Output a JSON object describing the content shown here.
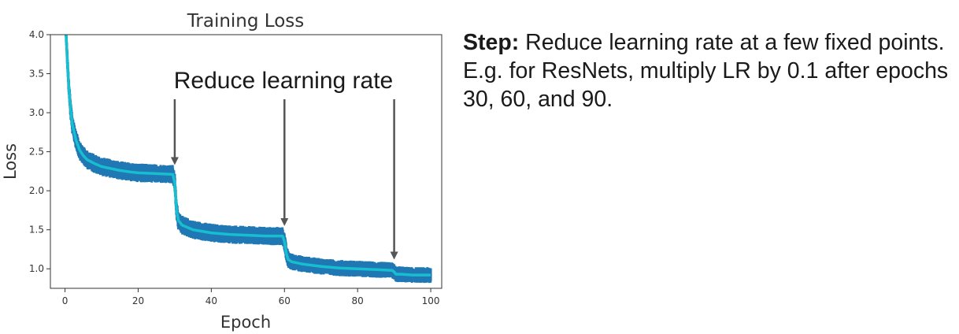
{
  "chart_data": {
    "type": "line",
    "title": "Training Loss",
    "xlabel": "Epoch",
    "ylabel": "Loss",
    "xlim": [
      -4,
      103
    ],
    "ylim": [
      0.75,
      4.0
    ],
    "xticks": [
      0,
      20,
      40,
      60,
      80,
      100
    ],
    "yticks": [
      1.0,
      1.5,
      2.0,
      2.5,
      3.0,
      3.5,
      4.0
    ],
    "xtick_labels": [
      "0",
      "20",
      "40",
      "60",
      "80",
      "100"
    ],
    "ytick_labels": [
      "1.0",
      "1.5",
      "2.0",
      "2.5",
      "3.0",
      "3.5",
      "4.0"
    ],
    "grid": false,
    "series": [
      {
        "color": "#17becf",
        "band_color": "#1f77b4",
        "x": [
          0,
          0.5,
          1,
          1.5,
          2,
          3,
          4,
          5,
          6,
          8,
          10,
          12,
          15,
          18,
          20,
          25,
          29.5,
          30,
          30.5,
          31,
          32,
          35,
          40,
          45,
          50,
          55,
          59.5,
          60,
          60.5,
          61,
          62,
          65,
          70,
          75,
          80,
          85,
          89.5,
          90,
          90.5,
          92,
          95,
          100
        ],
        "values": [
          4.3,
          3.8,
          3.35,
          3.05,
          2.85,
          2.65,
          2.52,
          2.45,
          2.4,
          2.35,
          2.31,
          2.29,
          2.26,
          2.24,
          2.23,
          2.22,
          2.21,
          2.1,
          1.75,
          1.62,
          1.56,
          1.5,
          1.46,
          1.44,
          1.43,
          1.42,
          1.42,
          1.35,
          1.2,
          1.12,
          1.09,
          1.06,
          1.03,
          1.01,
          1.0,
          0.99,
          0.98,
          0.96,
          0.93,
          0.93,
          0.92,
          0.92
        ],
        "noise_amplitude": 0.12
      }
    ],
    "annotations": {
      "text": "Reduce learning rate",
      "arrow_epochs": [
        30,
        60,
        90
      ]
    }
  },
  "side_text": {
    "step_label": "Step:",
    "body": " Reduce learning rate at a few fixed points. E.g. for ResNets, multiply LR by 0.1 after epochs 30, 60, and 90."
  }
}
